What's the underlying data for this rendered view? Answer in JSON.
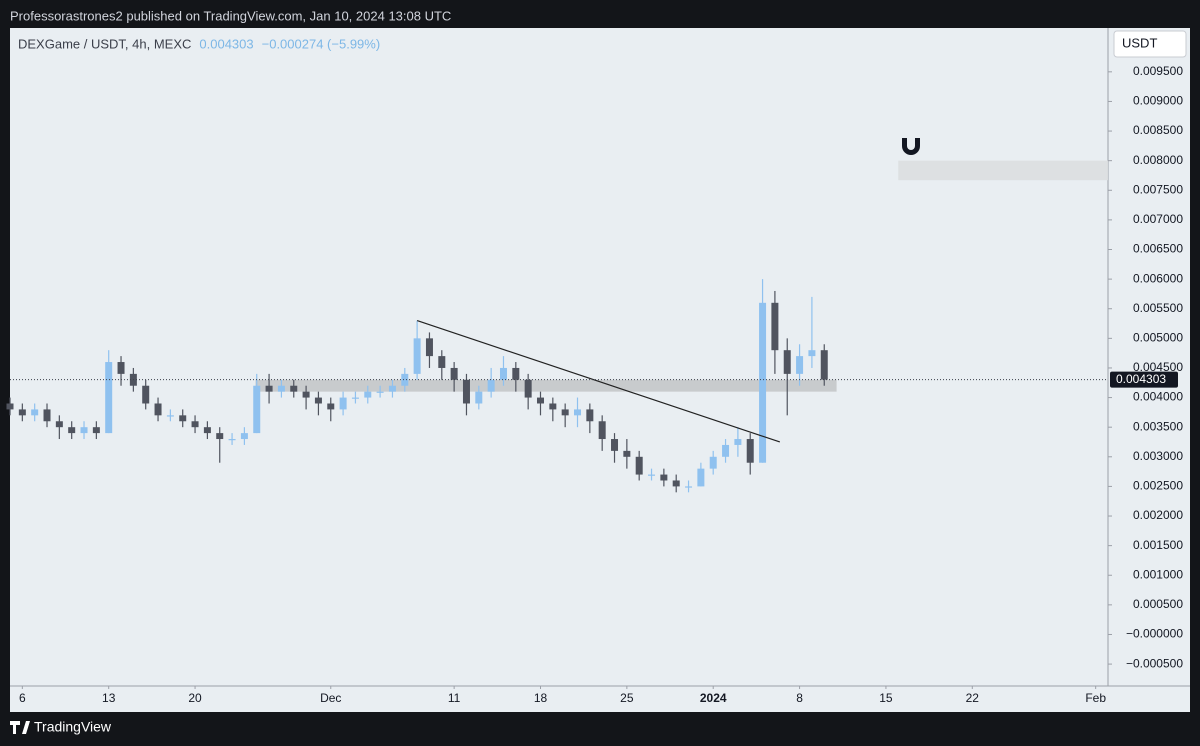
{
  "header": {
    "publisher": "Professorastrones2 published on TradingView.com, Jan 10, 2024 13:08 UTC",
    "brand": "TradingView"
  },
  "chart_data": {
    "type": "candlestick",
    "title": "DEXGame / USDT, 4h, MEXC",
    "change": "−0.000274 (−5.99%)",
    "currency": "USDT",
    "up_color": "#8fc1ef",
    "down_color": "#50545f",
    "x": [
      -1,
      0,
      1,
      2,
      3,
      4,
      5,
      6,
      7,
      8,
      9,
      10,
      11,
      12,
      13,
      14,
      15,
      16,
      17,
      18,
      19,
      20,
      21,
      22,
      23,
      24,
      25,
      26,
      27,
      28,
      29,
      30,
      31,
      32,
      33,
      34,
      35,
      36,
      37,
      38,
      39,
      40,
      41,
      42,
      43,
      44,
      45,
      46,
      47,
      48,
      49,
      50,
      51,
      52,
      53,
      54,
      55,
      56,
      57,
      58,
      59,
      60,
      61,
      62,
      63,
      64,
      65
    ],
    "open": [
      0.0039,
      0.0038,
      0.0037,
      0.0038,
      0.0036,
      0.0035,
      0.0034,
      0.0035,
      0.0034,
      0.0046,
      0.0044,
      0.0042,
      0.0039,
      0.0037,
      0.0037,
      0.0036,
      0.0035,
      0.0034,
      0.0033,
      0.0033,
      0.0034,
      0.0042,
      0.0041,
      0.0042,
      0.0041,
      0.004,
      0.0039,
      0.0038,
      0.004,
      0.004,
      0.0041,
      0.0041,
      0.0042,
      0.0044,
      0.005,
      0.0047,
      0.0045,
      0.0043,
      0.0039,
      0.0041,
      0.0043,
      0.0045,
      0.0043,
      0.004,
      0.0039,
      0.0038,
      0.0037,
      0.0038,
      0.0036,
      0.0033,
      0.0031,
      0.003,
      0.0027,
      0.0027,
      0.0026,
      0.0025,
      0.0025,
      0.0028,
      0.003,
      0.0032,
      0.0033,
      0.0029,
      0.0056,
      0.0048,
      0.0044,
      0.0047,
      0.0048
    ],
    "high": [
      0.004,
      0.0039,
      0.0039,
      0.0039,
      0.0037,
      0.0036,
      0.0036,
      0.0036,
      0.0048,
      0.0047,
      0.0045,
      0.0043,
      0.004,
      0.0038,
      0.0038,
      0.0037,
      0.0036,
      0.0035,
      0.0034,
      0.0035,
      0.0044,
      0.0044,
      0.0043,
      0.0043,
      0.0042,
      0.0041,
      0.004,
      0.0041,
      0.0041,
      0.0042,
      0.0042,
      0.0043,
      0.0045,
      0.0053,
      0.0051,
      0.0048,
      0.0046,
      0.0044,
      0.0042,
      0.0045,
      0.0047,
      0.0046,
      0.0044,
      0.0041,
      0.004,
      0.0039,
      0.004,
      0.0039,
      0.0037,
      0.0034,
      0.0033,
      0.0031,
      0.0028,
      0.0028,
      0.0027,
      0.0026,
      0.0029,
      0.0031,
      0.0033,
      0.0035,
      0.0034,
      0.006,
      0.0058,
      0.005,
      0.0049,
      0.0057,
      0.0049
    ],
    "low": [
      0.0037,
      0.0036,
      0.0036,
      0.0035,
      0.0033,
      0.0033,
      0.0033,
      0.0033,
      0.0034,
      0.0042,
      0.0041,
      0.0038,
      0.0036,
      0.0036,
      0.0035,
      0.0034,
      0.0033,
      0.0029,
      0.0032,
      0.0032,
      0.0034,
      0.0039,
      0.004,
      0.004,
      0.0038,
      0.0037,
      0.0036,
      0.0037,
      0.0039,
      0.0039,
      0.004,
      0.004,
      0.0041,
      0.0043,
      0.0045,
      0.0043,
      0.0041,
      0.0037,
      0.0038,
      0.004,
      0.0042,
      0.0041,
      0.0038,
      0.0037,
      0.0036,
      0.0035,
      0.0035,
      0.0034,
      0.0031,
      0.0029,
      0.0028,
      0.0026,
      0.0026,
      0.0025,
      0.0024,
      0.0024,
      0.0025,
      0.0027,
      0.0029,
      0.003,
      0.0027,
      0.0029,
      0.0044,
      0.0037,
      0.0042,
      0.0045,
      0.0042
    ],
    "close": [
      0.0038,
      0.0037,
      0.0038,
      0.0036,
      0.0035,
      0.0034,
      0.0035,
      0.0034,
      0.0046,
      0.0044,
      0.0042,
      0.0039,
      0.0037,
      0.0037,
      0.0036,
      0.0035,
      0.0034,
      0.0033,
      0.0033,
      0.0034,
      0.0042,
      0.0041,
      0.0042,
      0.0041,
      0.004,
      0.0039,
      0.0038,
      0.004,
      0.004,
      0.0041,
      0.0041,
      0.0042,
      0.0044,
      0.005,
      0.0047,
      0.0045,
      0.0043,
      0.0039,
      0.0041,
      0.0043,
      0.0045,
      0.0043,
      0.004,
      0.0039,
      0.0038,
      0.0037,
      0.0038,
      0.0036,
      0.0033,
      0.0031,
      0.003,
      0.0027,
      0.0027,
      0.0026,
      0.0025,
      0.0025,
      0.0028,
      0.003,
      0.0032,
      0.0033,
      0.0029,
      0.0056,
      0.0048,
      0.0044,
      0.0047,
      0.0048,
      0.004303
    ],
    "xlim": [
      -1,
      88
    ],
    "ylim": [
      -0.00087,
      0.01024
    ],
    "xticks": [
      {
        "value": 0,
        "label": "6"
      },
      {
        "value": 7,
        "label": "13"
      },
      {
        "value": 14,
        "label": "20"
      },
      {
        "value": 25,
        "label": "Dec"
      },
      {
        "value": 35,
        "label": "11"
      },
      {
        "value": 42,
        "label": "18"
      },
      {
        "value": 49,
        "label": "25"
      },
      {
        "value": 56,
        "label": "2024"
      },
      {
        "value": 63,
        "label": "8"
      },
      {
        "value": 70,
        "label": "15"
      },
      {
        "value": 77,
        "label": "22"
      },
      {
        "value": 87,
        "label": "Feb"
      }
    ],
    "yticks": [
      {
        "value": 0.0095,
        "label": "0.009500"
      },
      {
        "value": 0.009,
        "label": "0.009000"
      },
      {
        "value": 0.0085,
        "label": "0.008500"
      },
      {
        "value": 0.008,
        "label": "0.008000"
      },
      {
        "value": 0.0075,
        "label": "0.007500"
      },
      {
        "value": 0.007,
        "label": "0.007000"
      },
      {
        "value": 0.0065,
        "label": "0.006500"
      },
      {
        "value": 0.006,
        "label": "0.006000"
      },
      {
        "value": 0.0055,
        "label": "0.005500"
      },
      {
        "value": 0.005,
        "label": "0.005000"
      },
      {
        "value": 0.0045,
        "label": "0.004500"
      },
      {
        "value": 0.004,
        "label": "0.004000"
      },
      {
        "value": 0.0035,
        "label": "0.003500"
      },
      {
        "value": 0.003,
        "label": "0.003000"
      },
      {
        "value": 0.0025,
        "label": "0.002500"
      },
      {
        "value": 0.002,
        "label": "0.002000"
      },
      {
        "value": 0.0015,
        "label": "0.001500"
      },
      {
        "value": 0.001,
        "label": "0.001000"
      },
      {
        "value": 0.0005,
        "label": "0.000500"
      },
      {
        "value": 0,
        "label": "−0.000000"
      },
      {
        "value": -0.0005,
        "label": "−0.000500"
      }
    ],
    "zones": [
      {
        "x": [
          18.9,
          66
        ],
        "y": [
          0.0041,
          0.0043
        ],
        "color": "#c4c6c9"
      },
      {
        "x": [
          71,
          88
        ],
        "y": [
          0.00767,
          0.008
        ],
        "color": "#dcdee0"
      }
    ],
    "trendline": {
      "x": [
        32,
        61.4
      ],
      "y": [
        0.0053,
        0.00325
      ],
      "color": "#222222"
    }
  }
}
